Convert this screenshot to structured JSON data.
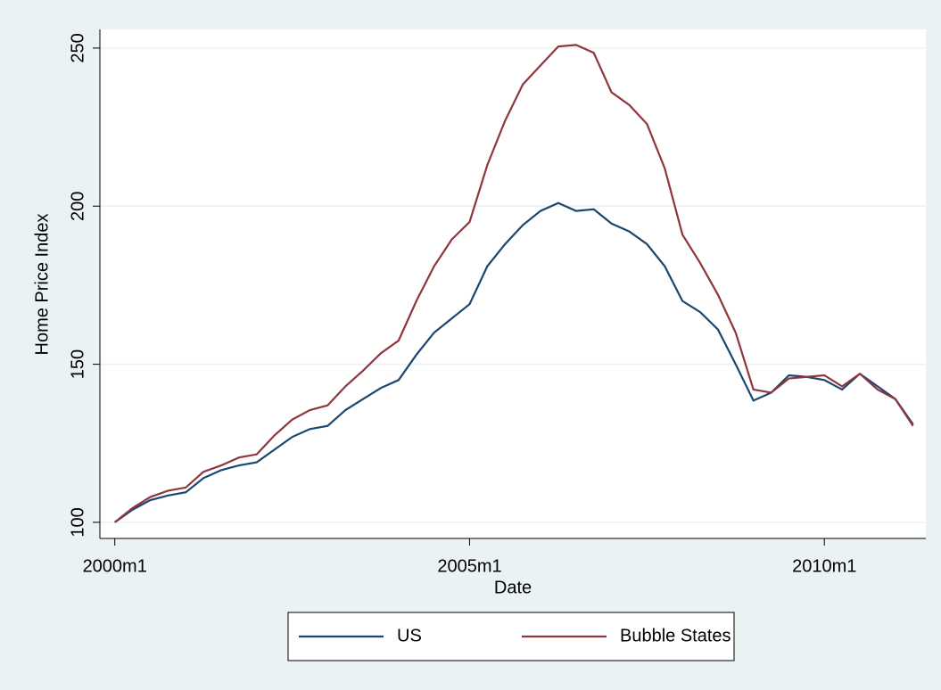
{
  "chart_data": {
    "type": "line",
    "ylabel": "Home Price Index",
    "xlabel": "Date",
    "x": [
      2000,
      2000.25,
      2000.5,
      2000.75,
      2001,
      2001.25,
      2001.5,
      2001.75,
      2002,
      2002.25,
      2002.5,
      2002.75,
      2003,
      2003.25,
      2003.5,
      2003.75,
      2004,
      2004.25,
      2004.5,
      2004.75,
      2005,
      2005.25,
      2005.5,
      2005.75,
      2006,
      2006.25,
      2006.5,
      2006.75,
      2007,
      2007.25,
      2007.5,
      2007.75,
      2008,
      2008.25,
      2008.5,
      2008.75,
      2009,
      2009.25,
      2009.5,
      2009.75,
      2010,
      2010.25,
      2010.5,
      2010.75,
      2011,
      2011.25
    ],
    "series": [
      {
        "name": "US",
        "color": "#1a476f",
        "values": [
          100,
          104,
          107,
          108.5,
          109.5,
          114,
          116.5,
          118,
          119,
          123,
          127,
          129.5,
          130.5,
          135.5,
          139,
          142.5,
          145,
          153,
          160,
          164.5,
          169,
          181,
          188,
          194,
          198.5,
          201,
          198.5,
          199,
          194.5,
          192,
          188,
          181,
          170,
          166.5,
          161,
          150,
          138.5,
          141,
          146.5,
          146,
          145,
          142,
          147,
          143,
          139,
          131
        ]
      },
      {
        "name": "Bubble States",
        "color": "#90353b",
        "values": [
          100,
          104.5,
          108,
          110,
          111,
          116,
          118,
          120.5,
          121.5,
          127.5,
          132.5,
          135.5,
          137,
          143,
          148,
          153.5,
          157.5,
          170,
          181,
          189.5,
          195,
          213,
          227,
          238.5,
          244.5,
          250.5,
          251,
          248.5,
          236,
          232,
          226,
          212,
          191,
          182,
          172,
          160,
          142,
          141,
          145.5,
          146,
          146.5,
          143,
          147,
          142,
          139,
          130.5
        ]
      }
    ],
    "xlim": [
      1999.79,
      2011.43
    ],
    "xticks": [
      {
        "value": 2000,
        "label": "2000m1"
      },
      {
        "value": 2005,
        "label": "2005m1"
      },
      {
        "value": 2010,
        "label": "2010m1"
      }
    ],
    "ylim": [
      94.9,
      255.9
    ],
    "yticks": [
      100,
      150,
      200,
      250
    ],
    "grid": true,
    "legend": "bottom"
  }
}
